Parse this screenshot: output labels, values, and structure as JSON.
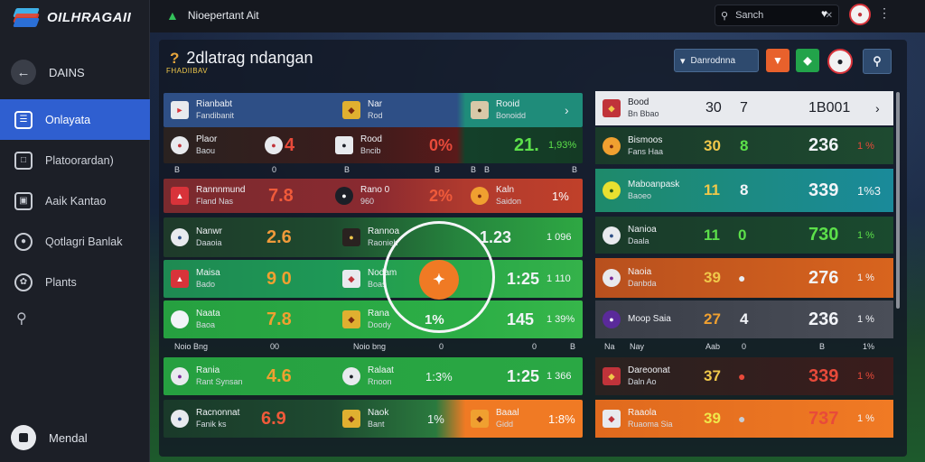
{
  "app": {
    "logo_text": "OILHRAGAII",
    "top_title": "Nioepertant Ait"
  },
  "sidebar": {
    "back_label": "DAINS",
    "items": [
      {
        "label": "Onlayata",
        "icon": "document-icon"
      },
      {
        "label": "Platoorardan)",
        "icon": "trash-icon"
      },
      {
        "label": "Aaik Kantao",
        "icon": "monitor-icon"
      },
      {
        "label": "Qotlagri Banlak",
        "icon": "user-group-icon"
      },
      {
        "label": "Plants",
        "icon": "gear-icon"
      }
    ],
    "footer_label": "Mendal"
  },
  "topbar": {
    "search_text": "Sanch"
  },
  "panel": {
    "title": "2dlatrag ndangan",
    "subtitle": "FHADIIBAV",
    "filter_label": "Danrodnna"
  },
  "left_rows": [
    {
      "a_name": "Rianbabt",
      "a_sub": "Fandibanit",
      "b_name": "Nar",
      "b_sub": "Rod",
      "c_name": "Rooid",
      "c_sub": "Bonoidd"
    },
    {
      "a_name": "Plaor",
      "a_sub": "Baou",
      "a_val": "4",
      "b_name": "Rood",
      "b_sub": "Bncib",
      "b_val": "0%",
      "c_val": "21.",
      "c_val2": "1,93%"
    },
    {
      "a_name": "Rannnmund",
      "a_sub": "Fland Nas",
      "a_val": "7.8",
      "b_name": "Rano 0",
      "b_sub": "960",
      "b_val": "2%",
      "c_name": "Kaln",
      "c_sub": "Saidon",
      "c_val": "1%"
    },
    {
      "a_name": "Nanwr",
      "a_sub": "Daaoia",
      "a_val": "2.6",
      "b_name": "Rannoa",
      "b_sub": "Raonieh",
      "c_val": "1.23",
      "c_val2": "1 096"
    },
    {
      "a_name": "Maisa",
      "a_sub": "Bado",
      "a_val": "9 0",
      "b_name": "Nodam",
      "b_sub": "Boas",
      "c_val": "1:25",
      "c_val2": "1 110"
    },
    {
      "a_name": "Naata",
      "a_sub": "Baoa",
      "a_val": "7.8",
      "b_name": "Rana",
      "b_sub": "Doody",
      "c_val": "145",
      "c_val2": "1 39%"
    },
    {
      "a_name": "Rania",
      "a_sub": "Rant Synsan",
      "a_val": "4.6",
      "b_name": "Ralaat",
      "b_sub": "Rnoon",
      "b_val": "1:3%",
      "c_val": "1:25",
      "c_val2": "1 366"
    },
    {
      "a_name": "Racnonnat",
      "a_sub": "Fanik ks",
      "a_val": "6.9",
      "b_name": "Naok",
      "b_sub": "Bant",
      "b_val": "1%",
      "c_name": "Baaal",
      "c_sub": "Gidd",
      "c_val": "1:8%"
    }
  ],
  "left_subheads": [
    [
      "B",
      "0",
      "B",
      "B",
      "B",
      "B",
      "B"
    ],
    [
      "Noio Bng",
      "00",
      "Noio bng",
      "0",
      "0",
      "B"
    ]
  ],
  "ring": {
    "pct": "1%"
  },
  "right_rows": [
    {
      "name": "Bood",
      "sub": "Bn Bbao",
      "v1": "30",
      "v2": "7",
      "v3": "1B001",
      "v4": ""
    },
    {
      "name": "Bismoos",
      "sub": "Fans Haa",
      "v1": "30",
      "v2": "8",
      "v3": "236",
      "v4": "1 %"
    },
    {
      "name": "Maboanpask",
      "sub": "Baoeo",
      "v1": "11",
      "v2": "8",
      "v3": "339",
      "v4": "1%3"
    },
    {
      "name": "Nanioa",
      "sub": "Daala",
      "v1": "11",
      "v2": "0",
      "v3": "730",
      "v4": "1 %"
    },
    {
      "name": "Naoia",
      "sub": "Danbda",
      "v1": "39",
      "v2": "",
      "v3": "276",
      "v4": "1 %"
    },
    {
      "name": "Moop Saia",
      "sub": "",
      "v1": "27",
      "v2": "4",
      "v3": "236",
      "v4": "1 %"
    },
    {
      "name": "Dareoonat",
      "sub": "Daln Ao",
      "v1": "37",
      "v2": "",
      "v3": "339",
      "v4": "1 %"
    },
    {
      "name": "Raaola",
      "sub": "Ruaoma Sia",
      "v1": "39",
      "v2": "",
      "v3": "737",
      "v4": "1 %"
    }
  ],
  "right_subhead": [
    "Na",
    "Nay",
    "Aab",
    "0",
    "B",
    "1%"
  ]
}
